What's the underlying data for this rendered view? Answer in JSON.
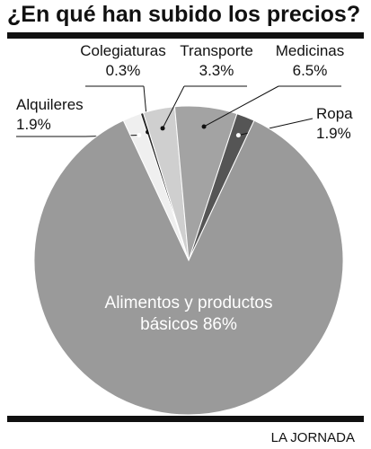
{
  "chart_data": {
    "type": "pie",
    "title": "¿En qué han subido los precios?",
    "source": "LA JORNADA",
    "categories": [
      "Alquileres",
      "Colegiaturas",
      "Transporte",
      "Medicinas",
      "Ropa",
      "Alimentos y productos básicos"
    ],
    "values": [
      1.9,
      0.3,
      3.3,
      6.5,
      1.9,
      86
    ],
    "value_labels": [
      "1.9%",
      "0.3%",
      "3.3%",
      "6.5%",
      "1.9%",
      "86%"
    ],
    "colors": [
      "#efefef",
      "#2a2a2a",
      "#cfcfcf",
      "#a3a3a3",
      "#555555",
      "#9a9a9a"
    ]
  }
}
